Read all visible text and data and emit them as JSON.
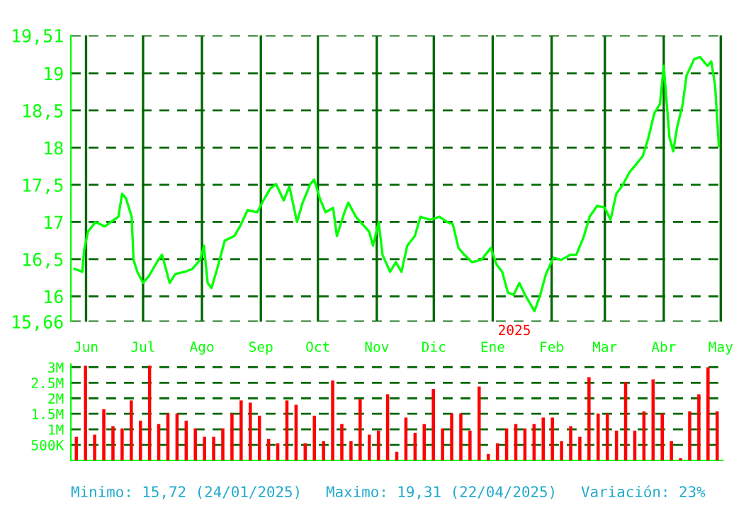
{
  "chart_data": [
    {
      "type": "line",
      "color": "#00ff00",
      "grid": true,
      "line_style": "solid",
      "marker": "none",
      "x": [
        "2024-05-26",
        "2024-05-30",
        "2024-05-31",
        "2024-06-02",
        "2024-06-06",
        "2024-06-11",
        "2024-06-14",
        "2024-06-18",
        "2024-06-20",
        "2024-06-22",
        "2024-06-25",
        "2024-06-26",
        "2024-06-28",
        "2024-07-01",
        "2024-07-04",
        "2024-07-09",
        "2024-07-11",
        "2024-07-15",
        "2024-07-18",
        "2024-07-23",
        "2024-07-27",
        "2024-07-31",
        "2024-08-02",
        "2024-08-04",
        "2024-08-06",
        "2024-08-09",
        "2024-08-13",
        "2024-08-18",
        "2024-08-21",
        "2024-08-25",
        "2024-08-30",
        "2024-09-03",
        "2024-09-06",
        "2024-09-09",
        "2024-09-13",
        "2024-09-16",
        "2024-09-20",
        "2024-09-23",
        "2024-09-27",
        "2024-09-29",
        "2024-10-02",
        "2024-10-05",
        "2024-10-09",
        "2024-10-11",
        "2024-10-15",
        "2024-10-17",
        "2024-10-21",
        "2024-10-28",
        "2024-10-30",
        "2024-11-02",
        "2024-11-04",
        "2024-11-08",
        "2024-11-11",
        "2024-11-14",
        "2024-11-17",
        "2024-11-21",
        "2024-11-24",
        "2024-11-29",
        "2024-12-04",
        "2024-12-08",
        "2024-12-11",
        "2024-12-14",
        "2024-12-17",
        "2024-12-21",
        "2024-12-26",
        "2024-12-31",
        "2025-01-03",
        "2025-01-06",
        "2025-01-09",
        "2025-01-12",
        "2025-01-15",
        "2025-01-18",
        "2025-01-23",
        "2025-01-26",
        "2025-01-29",
        "2025-02-02",
        "2025-02-06",
        "2025-02-11",
        "2025-02-14",
        "2025-02-18",
        "2025-02-21",
        "2025-02-25",
        "2025-03-01",
        "2025-03-04",
        "2025-03-07",
        "2025-03-10",
        "2025-03-14",
        "2025-03-17",
        "2025-03-21",
        "2025-03-24",
        "2025-03-27",
        "2025-03-30",
        "2025-04-01",
        "2025-04-04",
        "2025-04-06",
        "2025-04-08",
        "2025-04-11",
        "2025-04-13",
        "2025-04-17",
        "2025-04-20",
        "2025-04-24",
        "2025-04-26",
        "2025-04-28",
        "2025-04-30"
      ],
      "values": [
        16.37,
        16.33,
        16.62,
        16.87,
        17.0,
        16.94,
        17.0,
        17.07,
        17.38,
        17.32,
        17.07,
        16.49,
        16.33,
        16.18,
        16.27,
        16.49,
        16.56,
        16.18,
        16.3,
        16.33,
        16.37,
        16.49,
        16.68,
        16.18,
        16.11,
        16.37,
        16.75,
        16.81,
        16.94,
        17.16,
        17.13,
        17.32,
        17.45,
        17.51,
        17.29,
        17.48,
        17.0,
        17.26,
        17.51,
        17.57,
        17.32,
        17.13,
        17.19,
        16.81,
        17.13,
        17.26,
        17.07,
        16.87,
        16.68,
        17.0,
        16.56,
        16.33,
        16.46,
        16.33,
        16.68,
        16.81,
        17.07,
        17.03,
        17.07,
        17.0,
        16.97,
        16.65,
        16.56,
        16.46,
        16.49,
        16.65,
        16.43,
        16.33,
        16.05,
        16.02,
        16.18,
        16.02,
        15.8,
        16.02,
        16.3,
        16.52,
        16.49,
        16.56,
        16.56,
        16.81,
        17.07,
        17.22,
        17.19,
        17.03,
        17.38,
        17.48,
        17.67,
        17.76,
        17.89,
        18.14,
        18.46,
        18.59,
        19.1,
        18.14,
        17.95,
        18.27,
        18.59,
        18.97,
        19.19,
        19.22,
        19.1,
        19.16,
        18.84,
        18.02
      ],
      "xlim": [
        "2024-05-24",
        "2025-05-02"
      ],
      "xticks": [
        {
          "value": "2024-06-01",
          "label": "Jun"
        },
        {
          "value": "2024-07-01",
          "label": "Jul"
        },
        {
          "value": "2024-08-01",
          "label": "Ago"
        },
        {
          "value": "2024-09-01",
          "label": "Sep"
        },
        {
          "value": "2024-10-01",
          "label": "Oct"
        },
        {
          "value": "2024-11-01",
          "label": "Nov"
        },
        {
          "value": "2024-12-01",
          "label": "Dic"
        },
        {
          "value": "2025-01-01",
          "label": "Ene"
        },
        {
          "value": "2025-02-01",
          "label": "Feb"
        },
        {
          "value": "2025-03-01",
          "label": "Mar"
        },
        {
          "value": "2025-04-01",
          "label": "Abr"
        },
        {
          "value": "2025-05-01",
          "label": "May"
        }
      ],
      "ylim": [
        15.66,
        19.51
      ],
      "yticks": [
        {
          "value": 15.66,
          "label": "15,66"
        },
        16,
        {
          "value": 16.5,
          "label": "16,5"
        },
        17,
        {
          "value": 17.5,
          "label": "17,5"
        },
        18,
        {
          "value": 18.5,
          "label": "18,5"
        },
        19,
        {
          "value": 19.51,
          "label": "19,51"
        }
      ],
      "annotations": [
        "2025"
      ]
    },
    {
      "type": "bar",
      "color": "#ff0000",
      "grid": "y",
      "categories": [
        null,
        null,
        null,
        null,
        null,
        null,
        null,
        null,
        null,
        null,
        null,
        null,
        null,
        null,
        null,
        null,
        null,
        null,
        null,
        null,
        null,
        null,
        null,
        null,
        null,
        null,
        null,
        null,
        null,
        null,
        null,
        null,
        null,
        null,
        null,
        null,
        null,
        null,
        null,
        null,
        null,
        null,
        null,
        null,
        null,
        null,
        null,
        null,
        null,
        null,
        null,
        null,
        null,
        null,
        null,
        null,
        null,
        null,
        null,
        null,
        null,
        null,
        null,
        null,
        null,
        null,
        null,
        null,
        null,
        null,
        null
      ],
      "values": [
        760000,
        3050000,
        830000,
        1650000,
        1100000,
        1030000,
        1930000,
        1280000,
        3050000,
        1170000,
        1510000,
        1510000,
        1280000,
        1030000,
        760000,
        760000,
        1030000,
        1510000,
        1930000,
        1860000,
        1440000,
        690000,
        550000,
        1930000,
        1790000,
        550000,
        1440000,
        620000,
        2570000,
        1170000,
        620000,
        1970000,
        830000,
        960000,
        2130000,
        280000,
        1380000,
        890000,
        1170000,
        2300000,
        1030000,
        1510000,
        1510000,
        960000,
        2380000,
        210000,
        550000,
        1030000,
        1170000,
        1030000,
        1170000,
        1380000,
        1380000,
        620000,
        1100000,
        760000,
        2680000,
        1510000,
        1510000,
        960000,
        2520000,
        960000,
        1580000,
        2610000,
        1510000,
        620000,
        70000,
        1580000,
        2130000,
        3000000,
        1580000
      ],
      "ylim": [
        0,
        3100000
      ],
      "yticks": [
        {
          "value": 500000,
          "label": "500K"
        },
        {
          "value": 1000000,
          "label": "1M"
        },
        {
          "value": 1500000,
          "label": "1.5M"
        },
        {
          "value": 2000000,
          "label": "2M"
        },
        {
          "value": 2500000,
          "label": "2.5M"
        },
        {
          "value": 3000000,
          "label": "3M"
        }
      ],
      "annotations": [
        "Minimo: 15,72 (24/01/2025)",
        "Maximo: 19,31 (22/04/2025)",
        "Variación: 23%"
      ]
    }
  ]
}
